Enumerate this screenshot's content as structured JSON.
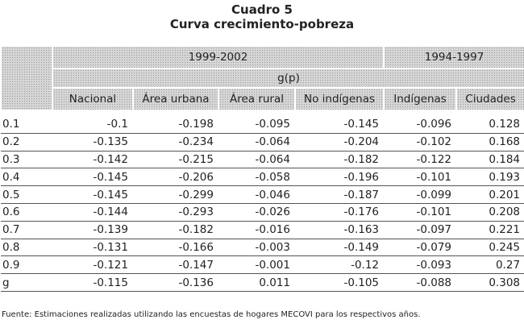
{
  "header": {
    "title": "Cuadro 5",
    "subtitle": "Curva crecimiento-pobreza"
  },
  "table": {
    "groups": [
      {
        "label": "1999-2002",
        "span": 4
      },
      {
        "label": "1994-1997",
        "span": 2
      }
    ],
    "subheader": "g(p)",
    "columns": [
      "Nacional",
      "Área urbana",
      "Área rural",
      "No indígenas",
      "Indígenas",
      "Ciudades"
    ],
    "rows": [
      [
        "0.1",
        "-0.1",
        "-0.198",
        "-0.095",
        "-0.145",
        "-0.096",
        "0.128"
      ],
      [
        "0.2",
        "-0.135",
        "-0.234",
        "-0.064",
        "-0.204",
        "-0.102",
        "0.168"
      ],
      [
        "0.3",
        "-0.142",
        "-0.215",
        "-0.064",
        "-0.182",
        "-0.122",
        "0.184"
      ],
      [
        "0.4",
        "-0.145",
        "-0.206",
        "-0.058",
        "-0.196",
        "-0.101",
        "0.193"
      ],
      [
        "0.5",
        "-0.145",
        "-0.299",
        "-0.046",
        "-0.187",
        "-0.099",
        "0.201"
      ],
      [
        "0.6",
        "-0.144",
        "-0.293",
        "-0.026",
        "-0.176",
        "-0.101",
        "0.208"
      ],
      [
        "0.7",
        "-0.139",
        "-0.182",
        "-0.016",
        "-0.163",
        "-0.097",
        "0.221"
      ],
      [
        "0.8",
        "-0.131",
        "-0.166",
        "-0.003",
        "-0.149",
        "-0.079",
        "0.245"
      ],
      [
        "0.9",
        "-0.121",
        "-0.147",
        "-0.001",
        "-0.12",
        "-0.093",
        "0.27"
      ],
      [
        "g",
        "-0.115",
        "-0.136",
        "0.011",
        "-0.105",
        "-0.088",
        "0.308"
      ]
    ]
  },
  "footer": {
    "note": "Fuente: Estimaciones realizadas utilizando las encuestas de hogares MECOVI para los respectivos años."
  }
}
